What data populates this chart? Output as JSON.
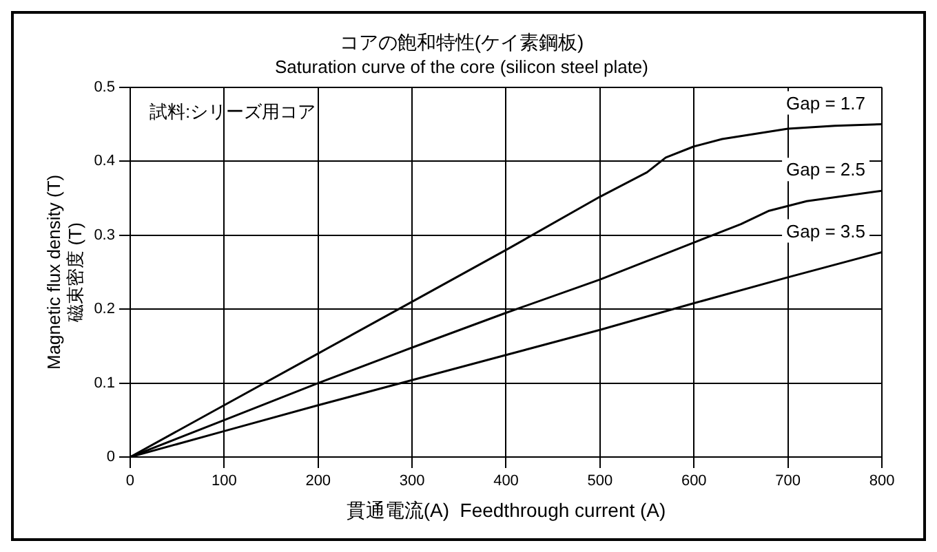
{
  "chart_data": {
    "type": "line",
    "title": "コアの飽和特性(ケイ素鋼板)",
    "subtitle": "Saturation curve of the core (silicon steel plate)",
    "xlabel": "貫通電流(A)  Feedthrough current (A)",
    "ylabel": "Magnetic flux density (T)\n磁束密度 (T)",
    "annotations": [
      "試料:シリーズ用コア"
    ],
    "series": [
      {
        "name": "Gap = 1.7",
        "color": "#000000",
        "x": [
          0,
          100,
          200,
          300,
          400,
          500,
          550,
          570,
          600,
          630,
          700,
          750,
          800
        ],
        "values": [
          0,
          0.07,
          0.14,
          0.21,
          0.28,
          0.352,
          0.385,
          0.405,
          0.42,
          0.43,
          0.444,
          0.448,
          0.45
        ]
      },
      {
        "name": "Gap = 2.5",
        "color": "#000000",
        "x": [
          0,
          100,
          200,
          300,
          400,
          500,
          600,
          650,
          680,
          720,
          800
        ],
        "values": [
          0,
          0.05,
          0.1,
          0.148,
          0.195,
          0.24,
          0.29,
          0.315,
          0.333,
          0.346,
          0.36
        ]
      },
      {
        "name": "Gap = 3.5",
        "color": "#000000",
        "x": [
          0,
          100,
          200,
          300,
          400,
          500,
          600,
          700,
          800
        ],
        "values": [
          0,
          0.035,
          0.07,
          0.104,
          0.138,
          0.172,
          0.208,
          0.243,
          0.277
        ]
      }
    ],
    "xlim": [
      0,
      800
    ],
    "xticks": [
      0,
      100,
      200,
      300,
      400,
      500,
      600,
      700,
      800
    ],
    "ylim": [
      0,
      0.5
    ],
    "yticks": [
      0,
      0.1,
      0.2,
      0.3,
      0.4,
      0.5
    ],
    "grid": true,
    "legend": false,
    "marker": "none",
    "line_style": "solid"
  }
}
